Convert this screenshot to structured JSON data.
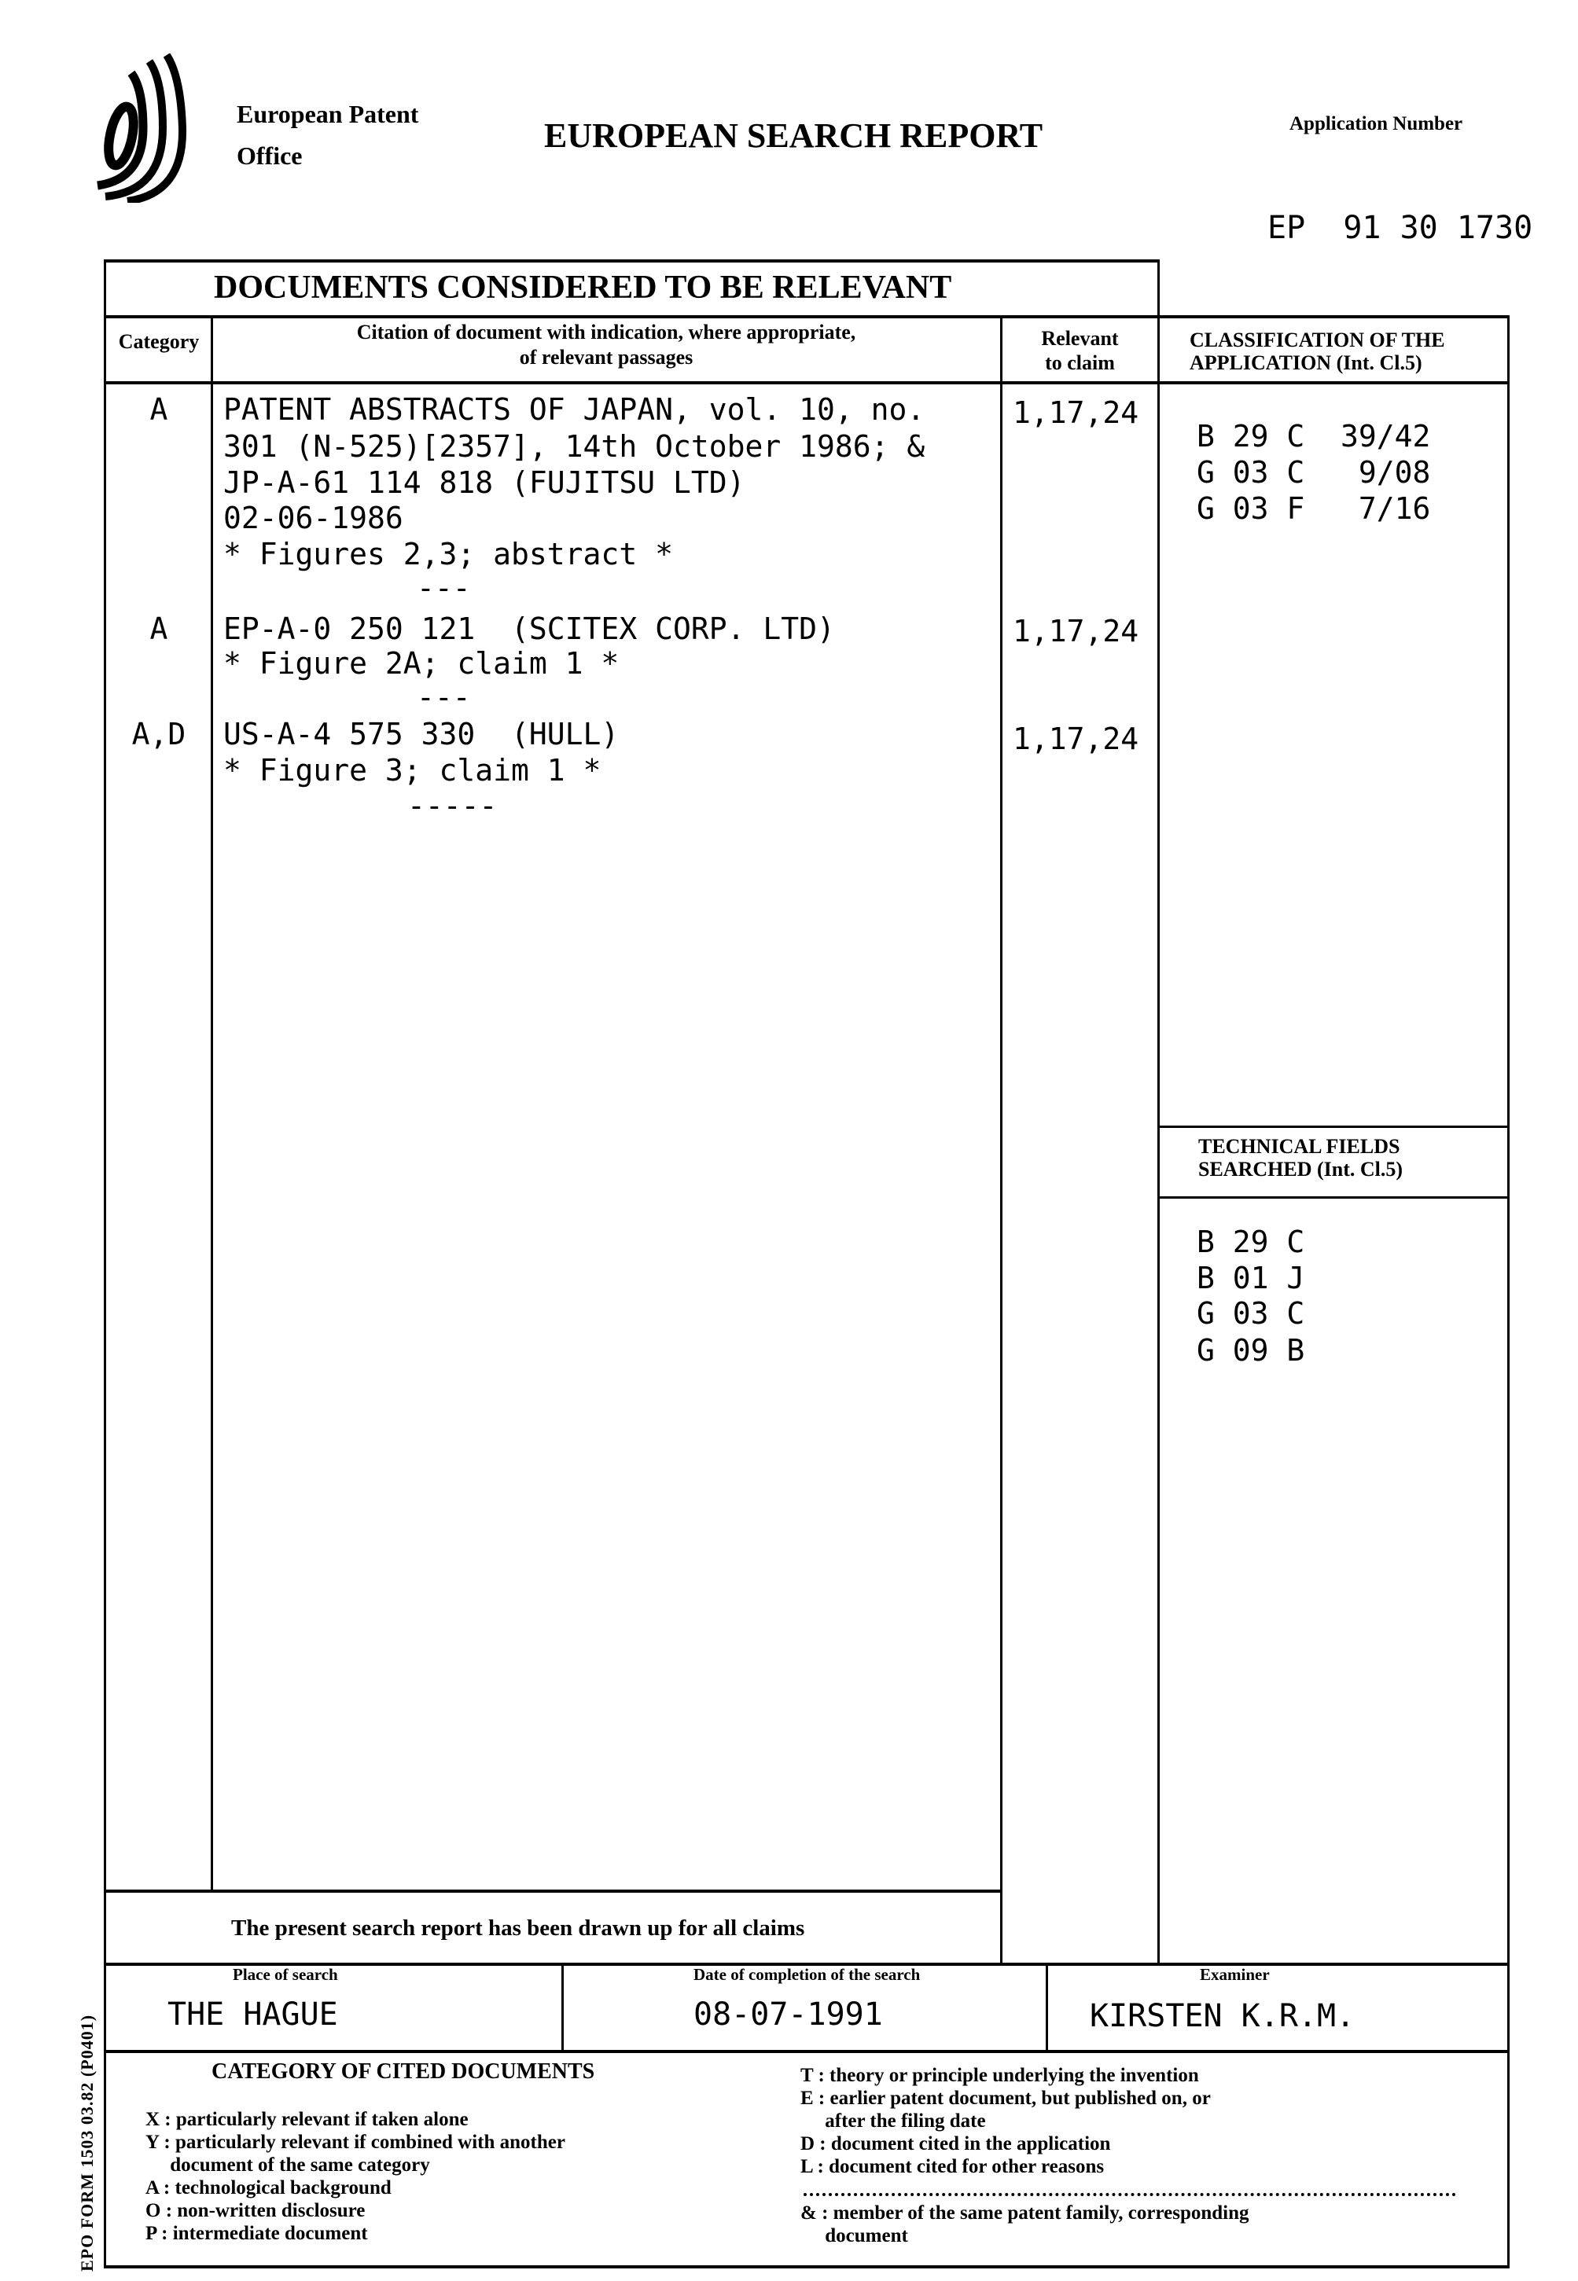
{
  "header": {
    "office_line1": "European Patent",
    "office_line2": "Office",
    "title": "EUROPEAN SEARCH REPORT",
    "application_number_label": "Application Number",
    "application_number": "EP  91 30 1730",
    "logo_icon": "epo-logo"
  },
  "documents": {
    "title": "DOCUMENTS CONSIDERED TO BE RELEVANT",
    "headers": {
      "category": "Category",
      "citation_line1": "Citation of document with indication, where appropriate,",
      "citation_line2": "of relevant passages",
      "relevant_line1": "Relevant",
      "relevant_line2": "to claim"
    },
    "rows": [
      {
        "category": "A",
        "lines": [
          "PATENT ABSTRACTS OF JAPAN, vol. 10, no.",
          "301 (N-525)[2357], 14th October 1986; &",
          "JP-A-61 114 818 (FUJITSU LTD)",
          "02-06-1986",
          "* Figures 2,3; abstract *"
        ],
        "separator": "---",
        "relevant": "1,17,24"
      },
      {
        "category": "A",
        "lines": [
          "EP-A-0 250 121  (SCITEX CORP. LTD)",
          "* Figure 2A; claim 1 *"
        ],
        "separator": "---",
        "relevant": "1,17,24"
      },
      {
        "category": "A,D",
        "lines": [
          "US-A-4 575 330  (HULL)",
          "* Figure 3; claim 1 *"
        ],
        "separator": "-----",
        "relevant": "1,17,24"
      }
    ]
  },
  "classification": {
    "header_line1": "CLASSIFICATION OF THE",
    "header_line2": "APPLICATION (Int. Cl.5)",
    "codes": [
      "B 29 C  39/42",
      "G 03 C   9/08",
      "G 03 F   7/16"
    ]
  },
  "technical_fields": {
    "header_line1": "TECHNICAL FIELDS",
    "header_line2": "SEARCHED (Int. Cl.5)",
    "codes": [
      "B 29 C",
      "B 01 J",
      "G 03 C",
      "G 09 B"
    ]
  },
  "footer": {
    "statement": "The present search report has been drawn up for all claims",
    "place_label": "Place of search",
    "place": "THE HAGUE",
    "date_label": "Date of completion of the search",
    "date": "08-07-1991",
    "examiner_label": "Examiner",
    "examiner": "KIRSTEN K.R.M."
  },
  "legend": {
    "title": "CATEGORY OF CITED DOCUMENTS",
    "left": [
      "X : particularly relevant if taken alone",
      "Y : particularly relevant if combined with another",
      "     document of the same category",
      "A : technological background",
      "O : non-written disclosure",
      "P : intermediate document"
    ],
    "right": [
      "T : theory or principle underlying the invention",
      "E : earlier patent document, but published on, or",
      "     after the filing date",
      "D : document cited in the application",
      "L : document cited for other reasons"
    ],
    "family": [
      "& : member of the same patent family, corresponding",
      "     document"
    ]
  },
  "form_id": "EPO FORM 1503 03.82 (P0401)"
}
